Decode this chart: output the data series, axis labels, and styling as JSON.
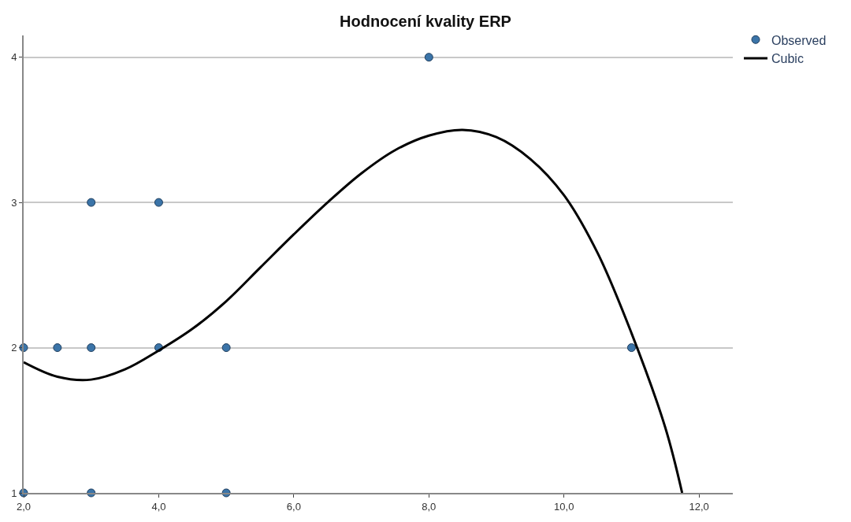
{
  "chart_data": {
    "type": "scatter",
    "title": "Hodnocení kvality ERP",
    "xlim": [
      2,
      12.5
    ],
    "xticks": [
      {
        "value": 2,
        "label": "2,0"
      },
      {
        "value": 4,
        "label": "4,0"
      },
      {
        "value": 6,
        "label": "6,0"
      },
      {
        "value": 8,
        "label": "8,0"
      },
      {
        "value": 10,
        "label": "10,0"
      },
      {
        "value": 12,
        "label": "12,0"
      }
    ],
    "ylim": [
      1,
      4.15
    ],
    "yticks": [
      1,
      2,
      3,
      4
    ],
    "grid": "y",
    "legend": "top right",
    "series": [
      {
        "name": "Observed",
        "marker": "circle",
        "color": "#3b74a8",
        "x": [
          2,
          2.5,
          3,
          4,
          5,
          11,
          3,
          4,
          8,
          2,
          3,
          5
        ],
        "values": [
          2,
          2,
          2,
          2,
          2,
          2,
          3,
          3,
          4,
          1,
          1,
          1
        ]
      },
      {
        "name": "Cubic",
        "type": "line",
        "marker": "none",
        "line_style": "solid",
        "color": "#000000",
        "x": [
          2,
          2.5,
          3,
          3.5,
          4,
          4.5,
          5,
          5.5,
          6,
          6.5,
          7,
          7.5,
          8,
          8.5,
          9,
          9.5,
          10,
          10.5,
          11,
          11.5,
          11.75
        ],
        "values": [
          1.9,
          1.8,
          1.78,
          1.85,
          1.98,
          2.13,
          2.32,
          2.55,
          2.78,
          3.0,
          3.2,
          3.36,
          3.46,
          3.5,
          3.45,
          3.3,
          3.05,
          2.65,
          2.1,
          1.45,
          1.0
        ]
      }
    ]
  }
}
